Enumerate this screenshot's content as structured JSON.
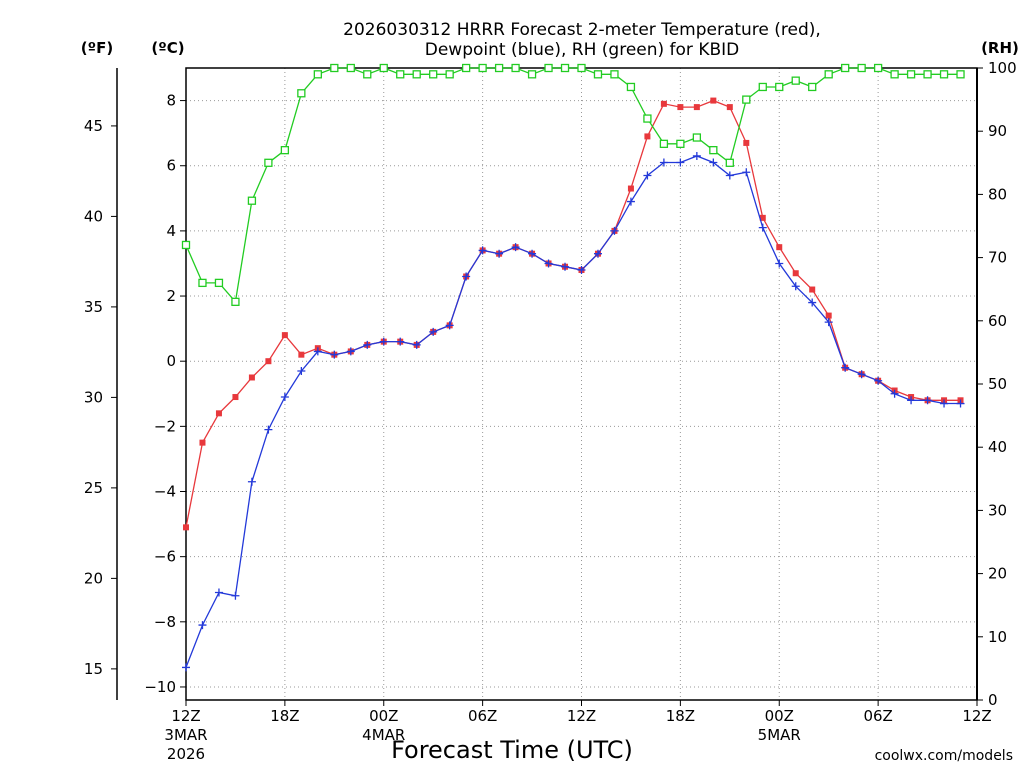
{
  "chart_data": {
    "type": "line",
    "title_line1": "2026030312 HRRR Forecast 2-meter Temperature (red),",
    "title_line2": "Dewpoint (blue), RH (green) for KBID",
    "xlabel": "Forecast Time (UTC)",
    "credit": "coolwx.com/models",
    "unit_labels": {
      "fahrenheit": "(ºF)",
      "celsius": "(ºC)",
      "rh": "(RH)"
    },
    "x_ticks": [
      {
        "hour": 0,
        "label": "12Z",
        "sub1": "3MAR",
        "sub2": "2026"
      },
      {
        "hour": 6,
        "label": "18Z",
        "sub1": "",
        "sub2": ""
      },
      {
        "hour": 12,
        "label": "00Z",
        "sub1": "4MAR",
        "sub2": ""
      },
      {
        "hour": 18,
        "label": "06Z",
        "sub1": "",
        "sub2": ""
      },
      {
        "hour": 24,
        "label": "12Z",
        "sub1": "",
        "sub2": ""
      },
      {
        "hour": 30,
        "label": "18Z",
        "sub1": "",
        "sub2": ""
      },
      {
        "hour": 36,
        "label": "00Z",
        "sub1": "5MAR",
        "sub2": ""
      },
      {
        "hour": 42,
        "label": "06Z",
        "sub1": "",
        "sub2": ""
      },
      {
        "hour": 48,
        "label": "12Z",
        "sub1": "",
        "sub2": ""
      }
    ],
    "xlim": [
      0,
      48
    ],
    "ylim_c": [
      -10.4,
      9.0
    ],
    "ylim_rh": [
      0,
      100
    ],
    "y_ticks_c": [
      "-10",
      "-8",
      "-6",
      "-4",
      "-2",
      "0",
      "2",
      "4",
      "6",
      "8"
    ],
    "y_ticks_f": [
      "15",
      "20",
      "25",
      "30",
      "35",
      "40",
      "45"
    ],
    "y_ticks_rh": [
      "0",
      "10",
      "20",
      "30",
      "40",
      "50",
      "60",
      "70",
      "80",
      "90",
      "100"
    ],
    "grid": true,
    "colors": {
      "temperature": "#e8383c",
      "dewpoint": "#2339d9",
      "rh": "#22cc22",
      "grid": "#999999",
      "credit": "#e03030"
    },
    "series": [
      {
        "key": "temperature",
        "marker": "filled-square",
        "values": [
          -5.1,
          -2.5,
          -1.6,
          -1.1,
          -0.5,
          0.0,
          0.8,
          0.2,
          0.4,
          0.2,
          0.3,
          0.5,
          0.6,
          0.6,
          0.5,
          0.9,
          1.1,
          2.6,
          3.4,
          3.3,
          3.5,
          3.3,
          3.0,
          2.9,
          2.8,
          3.3,
          4.0,
          5.3,
          6.9,
          7.9,
          7.8,
          7.8,
          8.0,
          7.8,
          6.7,
          4.4,
          3.5,
          2.7,
          2.2,
          1.4,
          -0.2,
          -0.4,
          -0.6,
          -0.9,
          -1.1,
          -1.2,
          -1.2,
          -1.2
        ]
      },
      {
        "key": "dewpoint",
        "marker": "plus",
        "values": [
          -9.4,
          -8.1,
          -7.1,
          -7.2,
          -3.7,
          -2.1,
          -1.1,
          -0.3,
          0.3,
          0.2,
          0.3,
          0.5,
          0.6,
          0.6,
          0.5,
          0.9,
          1.1,
          2.6,
          3.4,
          3.3,
          3.5,
          3.3,
          3.0,
          2.9,
          2.8,
          3.3,
          4.0,
          4.9,
          5.7,
          6.1,
          6.1,
          6.3,
          6.1,
          5.7,
          5.8,
          4.1,
          3.0,
          2.3,
          1.8,
          1.2,
          -0.2,
          -0.4,
          -0.6,
          -1.0,
          -1.2,
          -1.2,
          -1.3,
          -1.3
        ]
      },
      {
        "key": "rh",
        "marker": "open-square",
        "values": [
          72,
          66,
          66,
          63,
          79,
          85,
          87,
          96,
          99,
          100,
          100,
          99,
          100,
          99,
          99,
          99,
          99,
          100,
          100,
          100,
          100,
          99,
          100,
          100,
          100,
          99,
          99,
          97,
          92,
          88,
          88,
          89,
          87,
          85,
          95,
          97,
          97,
          98,
          97,
          99,
          100,
          100,
          100,
          99,
          99,
          99,
          99,
          99
        ]
      }
    ]
  }
}
